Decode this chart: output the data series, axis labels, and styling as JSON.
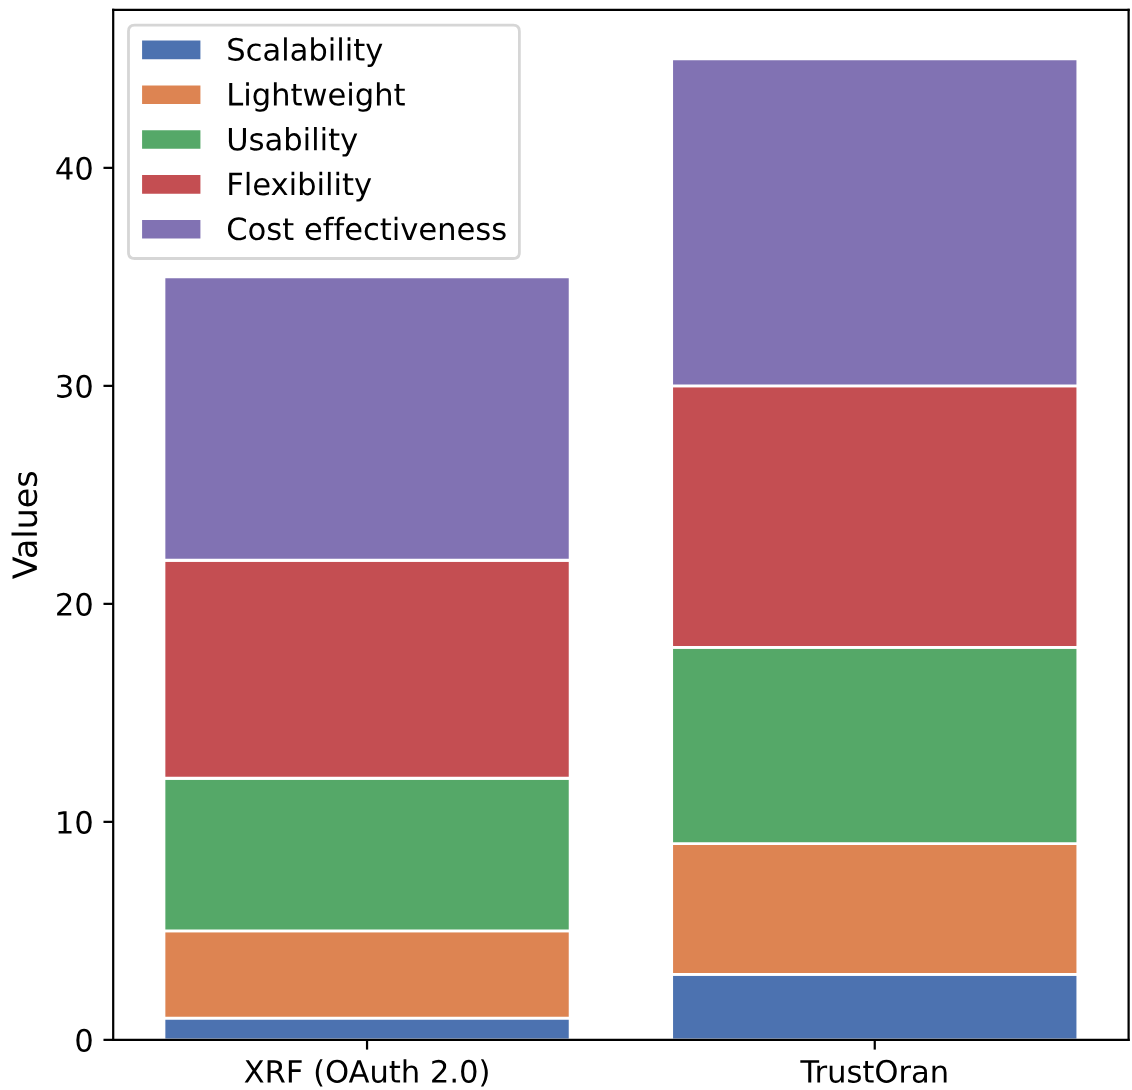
{
  "chart_data": {
    "type": "bar",
    "stacked": true,
    "ylabel": "Values",
    "categories": [
      "XRF (OAuth 2.0)",
      "TrustOran"
    ],
    "series": [
      {
        "name": "Scalability",
        "color": "#4c72b0",
        "values": [
          1,
          3
        ]
      },
      {
        "name": "Lightweight",
        "color": "#dd8452",
        "values": [
          4,
          6
        ]
      },
      {
        "name": "Usability",
        "color": "#55a868",
        "values": [
          7,
          9
        ]
      },
      {
        "name": "Flexibility",
        "color": "#c44e52",
        "values": [
          10,
          12
        ]
      },
      {
        "name": "Cost effectiveness",
        "color": "#8172b3",
        "values": [
          13,
          15
        ]
      }
    ],
    "ylim": [
      0,
      47.25
    ],
    "yticks": [
      0,
      10,
      20,
      30,
      40
    ],
    "legend": "top left",
    "grid": false
  }
}
